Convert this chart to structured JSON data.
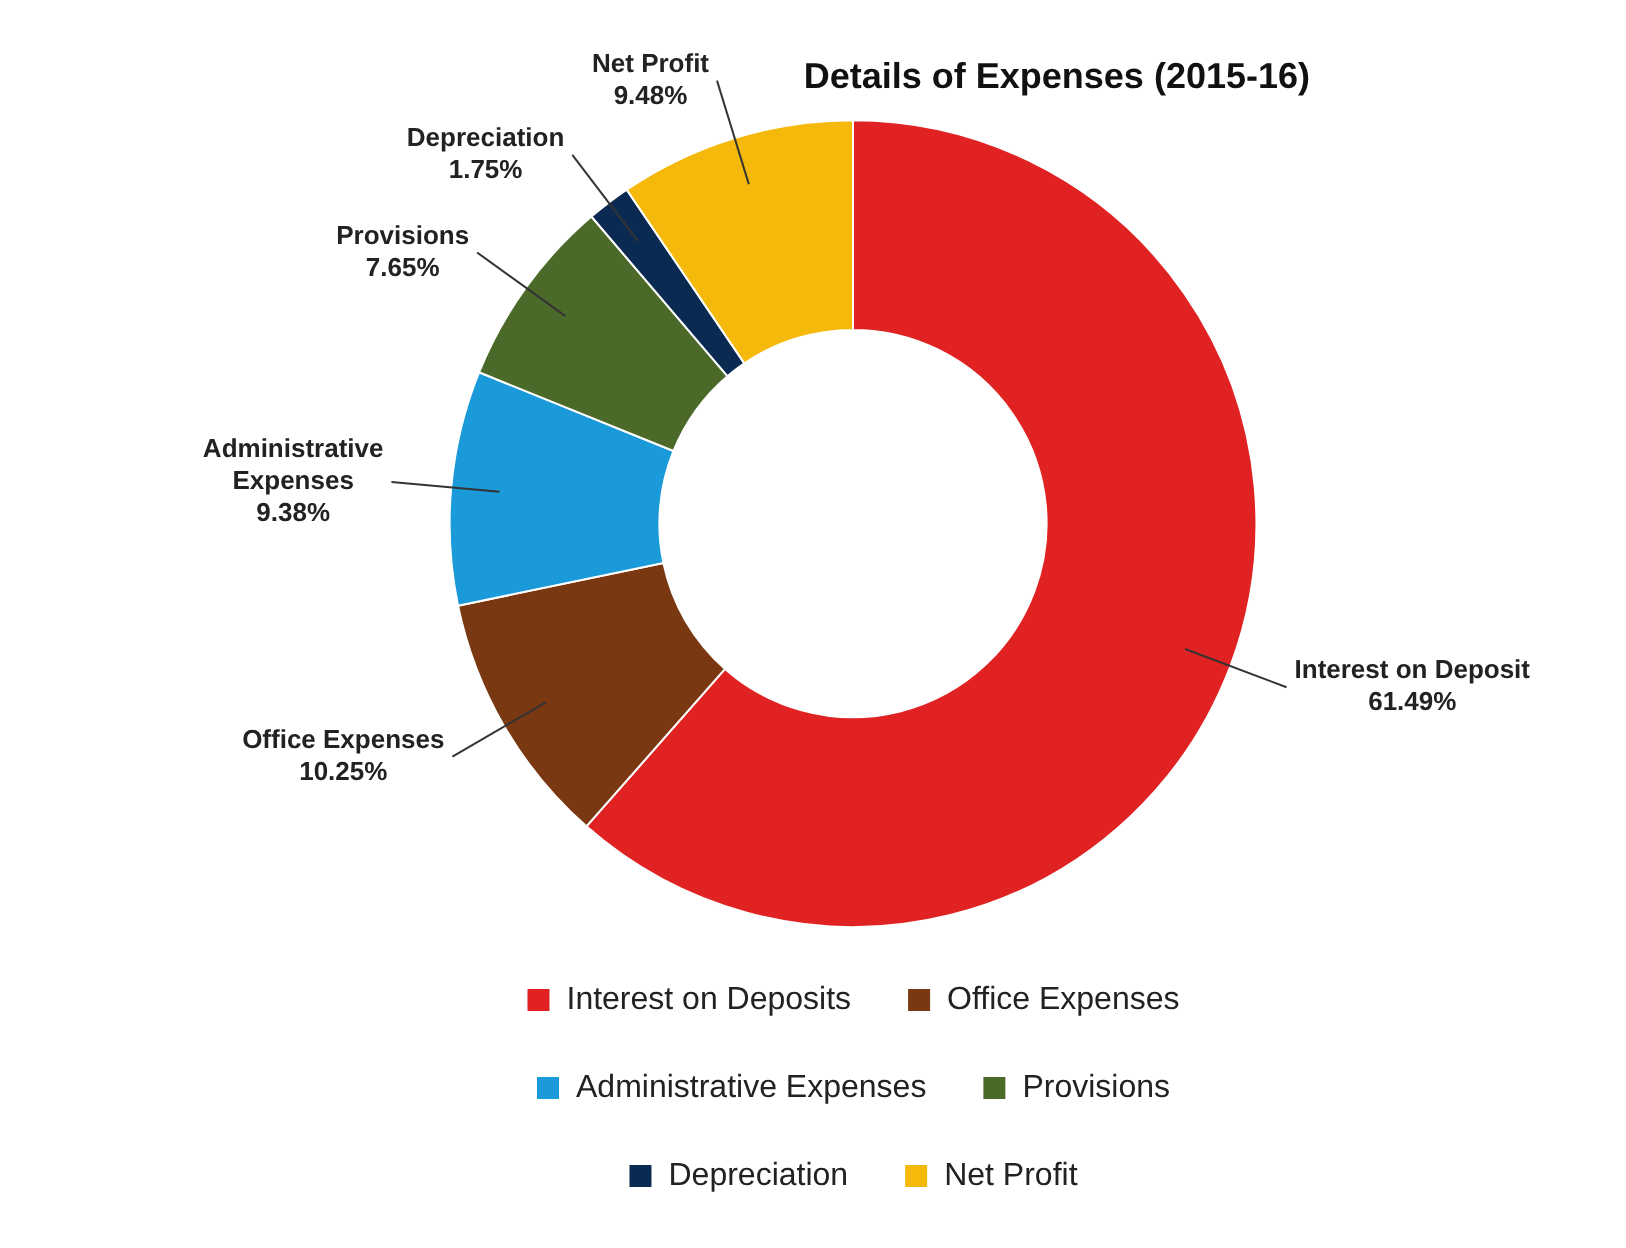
{
  "chart_data": {
    "type": "donut",
    "title": "Details of Expenses (2015-16)",
    "categories": [
      "Interest on Deposits",
      "Office Expenses",
      "Administrative Expenses",
      "Provisions",
      "Depreciation",
      "Net Profit"
    ],
    "values": [
      61.49,
      10.25,
      9.38,
      7.65,
      1.75,
      9.48
    ],
    "colors": [
      "#e02222",
      "#7a3812",
      "#1a9ad8",
      "#4b6a2a",
      "#0b2a52",
      "#f5b90c"
    ],
    "value_labels": [
      "Interest on Deposit\n61.49%",
      "Office Expenses\n10.25%",
      "Administrative\nExpenses\n9.38%",
      "Provisions\n7.65%",
      "Depreciation\n1.75%",
      "Net Profit\n9.48%"
    ],
    "legend": "bottom"
  }
}
